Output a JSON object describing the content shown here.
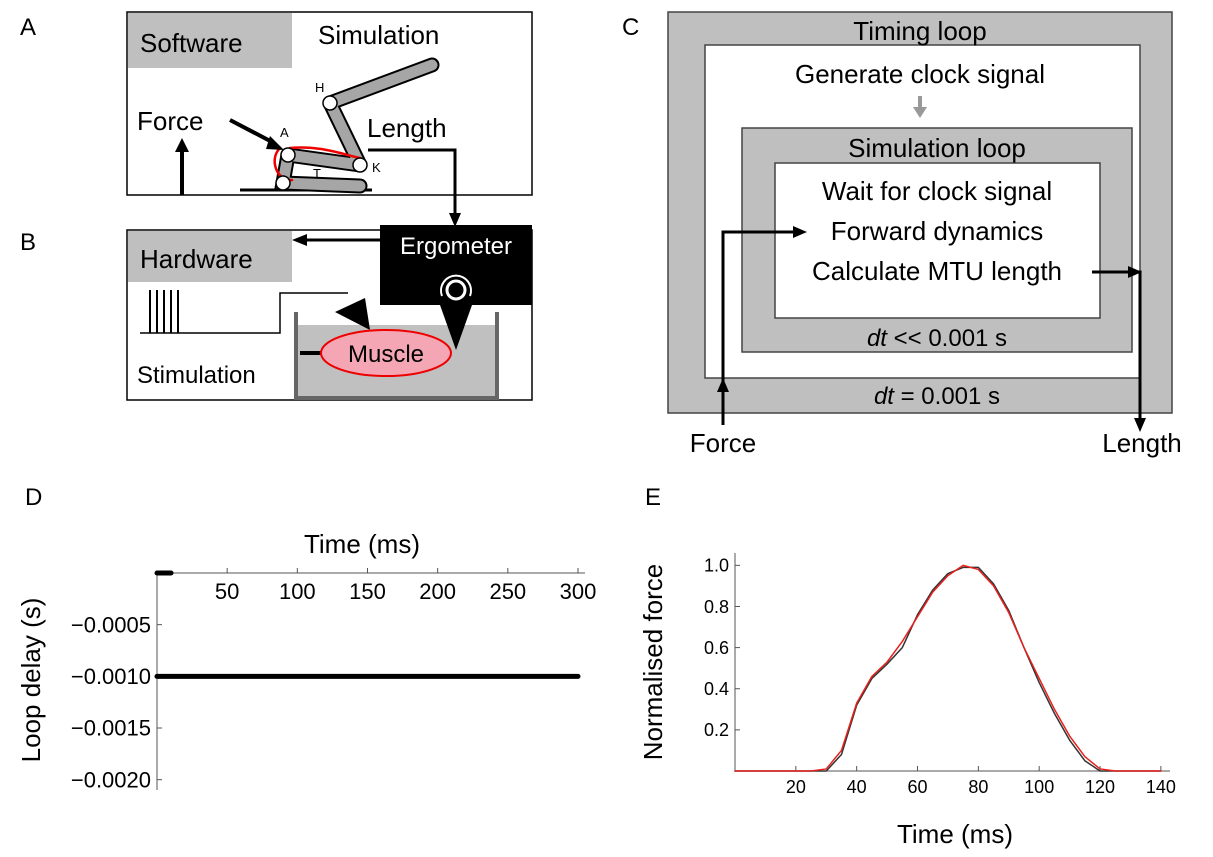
{
  "panel_labels": [
    "A",
    "B",
    "C",
    "D",
    "E"
  ],
  "diagram_a": {
    "software": "Software",
    "simulation": "Simulation",
    "force": "Force",
    "length": "Length",
    "joints": [
      "H",
      "A",
      "K",
      "T"
    ]
  },
  "diagram_b": {
    "hardware": "Hardware",
    "ergometer": "Ergometer",
    "muscle": "Muscle",
    "stimulation": "Stimulation"
  },
  "diagram_c": {
    "timing_loop": "Timing loop",
    "generate": "Generate clock signal",
    "simulation_loop": "Simulation loop",
    "steps": [
      "Wait for clock signal",
      "Forward dynamics",
      "Calculate MTU length"
    ],
    "dt_symbol": "dt",
    "inner_dt": "<< 0.001 s",
    "outer_dt": "= 0.001 s",
    "force": "Force",
    "length": "Length"
  },
  "chart_data": [
    {
      "type": "line",
      "x_label": "Time (ms)",
      "y_label": "Loop delay (s)",
      "xlim": [
        0,
        305
      ],
      "ylim": [
        -0.0021,
        0
      ],
      "xticks": [
        50,
        100,
        150,
        200,
        250,
        300
      ],
      "yticks": [
        {
          "value": -0.0005,
          "label": "−0.0005"
        },
        {
          "value": -0.001,
          "label": "−0.0010"
        },
        {
          "value": -0.0015,
          "label": "−0.0015"
        },
        {
          "value": -0.002,
          "label": "−0.0020"
        }
      ],
      "series": [
        {
          "color": "#000000",
          "x": [
            0,
            10
          ],
          "values": [
            0,
            0
          ]
        },
        {
          "color": "#000000",
          "x": [
            0,
            50,
            100,
            150,
            200,
            250,
            300
          ],
          "values": [
            -0.001,
            -0.001,
            -0.001,
            -0.001,
            -0.001,
            -0.001,
            -0.001
          ]
        }
      ]
    },
    {
      "type": "line",
      "x_label": "Time (ms)",
      "y_label": "Normalised force",
      "xlim": [
        0,
        143
      ],
      "ylim": [
        0,
        1.06
      ],
      "xticks": [
        20,
        40,
        60,
        80,
        100,
        120,
        140
      ],
      "yticks": [
        0.2,
        0.4,
        0.6,
        0.8,
        {
          "value": 1,
          "label": "1.0"
        }
      ],
      "series": [
        {
          "color": "#333333",
          "x": [
            0,
            5,
            10,
            15,
            20,
            25,
            30,
            35,
            40,
            45,
            50,
            55,
            60,
            65,
            70,
            75,
            80,
            85,
            90,
            95,
            100,
            105,
            110,
            115,
            120,
            125,
            130,
            135,
            140
          ],
          "values": [
            0,
            0,
            0,
            0,
            0,
            0,
            0,
            0.08,
            0.32,
            0.45,
            0.52,
            0.6,
            0.76,
            0.88,
            0.96,
            0.99,
            0.99,
            0.91,
            0.78,
            0.6,
            0.43,
            0.28,
            0.15,
            0.05,
            0,
            0,
            0,
            0,
            0
          ]
        },
        {
          "color": "#e8211d",
          "x": [
            0,
            5,
            10,
            15,
            20,
            25,
            30,
            35,
            40,
            45,
            50,
            55,
            60,
            65,
            70,
            75,
            80,
            85,
            90,
            95,
            100,
            105,
            110,
            115,
            120,
            125,
            130,
            135,
            140
          ],
          "values": [
            0,
            0,
            0,
            0,
            0,
            0,
            0.01,
            0.1,
            0.33,
            0.46,
            0.53,
            0.63,
            0.75,
            0.87,
            0.95,
            1.0,
            0.98,
            0.9,
            0.77,
            0.6,
            0.45,
            0.3,
            0.17,
            0.07,
            0.01,
            0,
            0,
            0,
            0
          ]
        }
      ]
    }
  ]
}
